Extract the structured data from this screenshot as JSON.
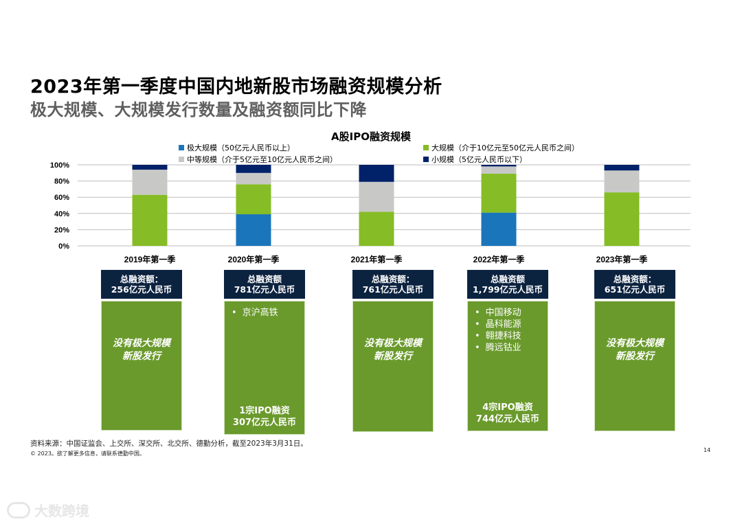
{
  "title": {
    "line1": "2023年第一季度中国内地新股市场融资规模分析",
    "line2": "极大规模、大规模发行数量及融资额同比下降"
  },
  "colors": {
    "mega": "#1b75bb",
    "large": "#86bc25",
    "medium": "#c8c9c7",
    "small": "#012169",
    "header_box": "#0c2340",
    "green_box": "#6a9a2c"
  },
  "chart_data": {
    "type": "bar",
    "title": "A股IPO融资规模",
    "categories": [
      "2019年第一季",
      "2020年第一季",
      "2021年第一季",
      "2022年第一季",
      "2023年第一季"
    ],
    "series": [
      {
        "key": "mega",
        "name": "极大规模（50亿元人民币以上）",
        "values": [
          0,
          39,
          0,
          41,
          0
        ]
      },
      {
        "key": "large",
        "name": "大规模（介于10亿元至50亿元人民币之间）",
        "values": [
          63,
          37,
          42,
          48,
          66
        ]
      },
      {
        "key": "medium",
        "name": "中等规模（介于5亿元至10亿元人民币之间）",
        "values": [
          31,
          14,
          37,
          9,
          27
        ]
      },
      {
        "key": "small",
        "name": "小规模（5亿元人民币以下）",
        "values": [
          6,
          10,
          21,
          2,
          7
        ]
      }
    ],
    "yticks": [
      "100%",
      "80%",
      "60%",
      "40%",
      "20%",
      "0%"
    ],
    "ylim": [
      0,
      100
    ]
  },
  "summaries": [
    {
      "header_line1": "总融资额：",
      "header_line2": "256亿元人民币",
      "no_large": [
        "没有极大规模",
        "新股发行"
      ],
      "bullets": [],
      "foot": []
    },
    {
      "header_line1": "总融资额",
      "header_line2": "781亿元人民币",
      "no_large": [],
      "bullets": [
        "京沪高铁"
      ],
      "foot": [
        "1宗IPO融资",
        "307亿元人民币"
      ]
    },
    {
      "header_line1": "总融资额：",
      "header_line2": "761亿元人民币",
      "no_large": [
        "没有极大规模",
        "新股发行"
      ],
      "bullets": [],
      "foot": []
    },
    {
      "header_line1": "总融资额",
      "header_line2": "1,799亿元人民币",
      "no_large": [],
      "bullets": [
        "中国移动",
        "晶科能源",
        "翱捷科技",
        "腾远钴业"
      ],
      "foot": [
        "4宗IPO融资",
        "744亿元人民币"
      ]
    },
    {
      "header_line1": "总融资额：",
      "header_line2": "651亿元人民币",
      "no_large": [
        "没有极大规模",
        "新股发行"
      ],
      "bullets": [],
      "foot": []
    }
  ],
  "footer": {
    "source": "资料来源：中国证监会、上交所、深交所、北交所、德勤分析，截至2023年3月31日。",
    "copyright": "© 2023。欲了解更多信息，请联系德勤中国。",
    "page_number": "14"
  },
  "watermark": "大数跨境"
}
